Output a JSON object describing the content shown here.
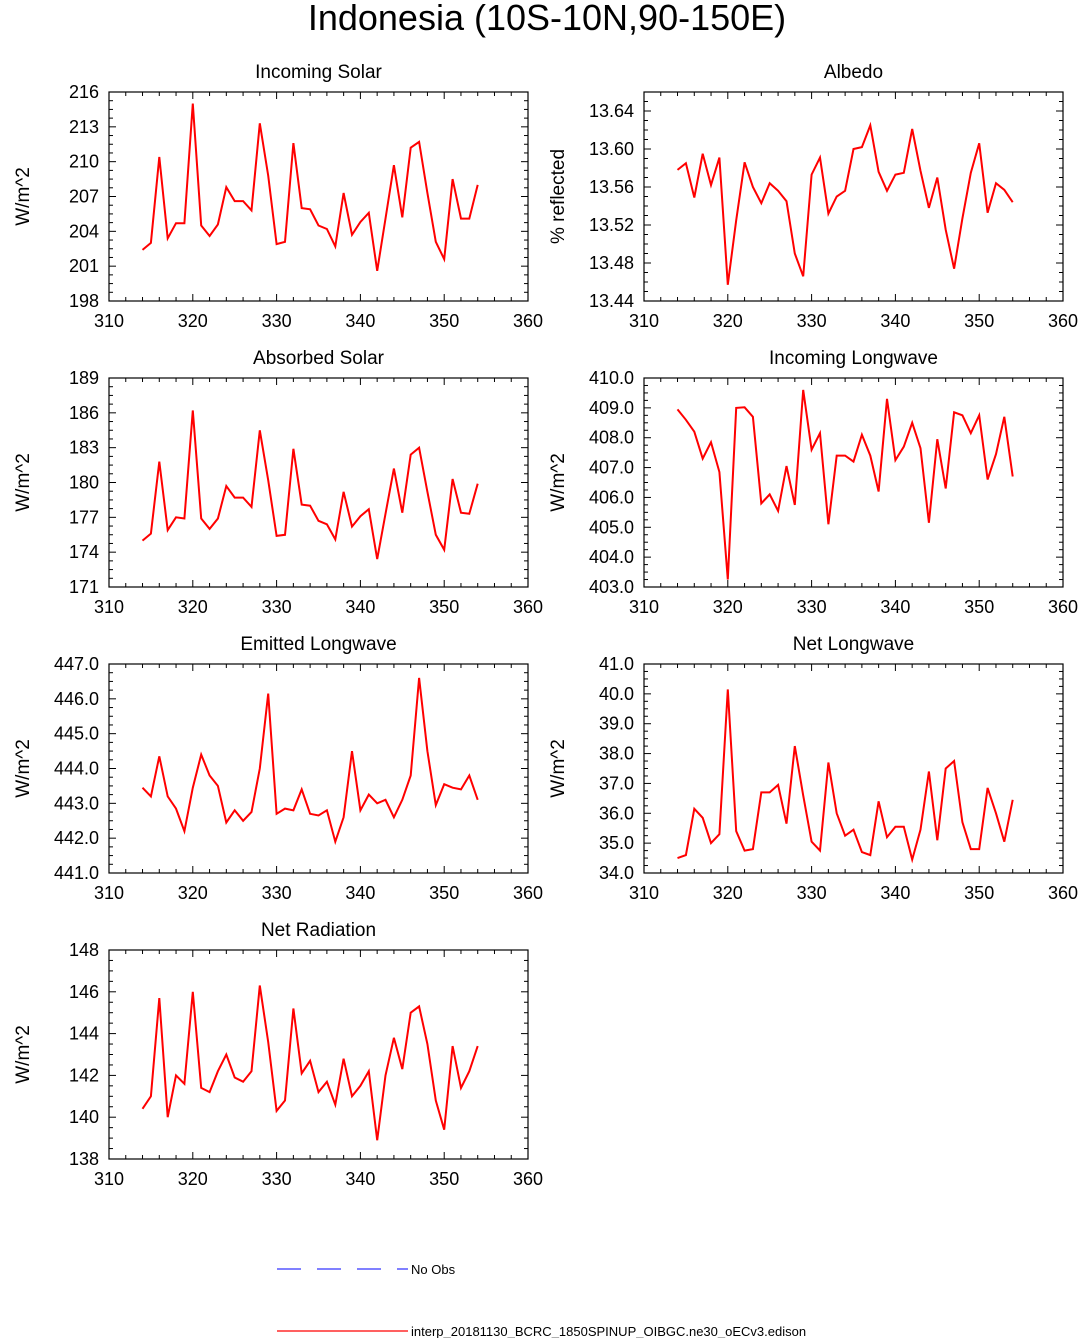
{
  "title": "Indonesia (10S-10N,90-150E)",
  "colors": {
    "model": "#ff0000",
    "obs": "#0000ff",
    "axis": "#000000"
  },
  "legend": {
    "obs_label": "No Obs",
    "model_label": "interp_20181130_BCRC_1850SPINUP_OIBGC.ne30_oECv3.edison"
  },
  "chart_data": [
    {
      "id": "incoming-solar",
      "type": "line",
      "title": "Incoming Solar",
      "ylabel": "W/m^2",
      "xlim": [
        310,
        360
      ],
      "xticks": [
        310,
        320,
        330,
        340,
        350,
        360
      ],
      "ylim": [
        198,
        216
      ],
      "yticks": [
        "198",
        "201",
        "204",
        "207",
        "210",
        "213",
        "216"
      ],
      "series": [
        {
          "name": "interp_20181130_BCRC_1850SPINUP_OIBGC.ne30_oECv3.edison",
          "x": [
            314,
            315,
            316,
            317,
            318,
            319,
            320,
            321,
            322,
            323,
            324,
            325,
            326,
            327,
            328,
            329,
            330,
            331,
            332,
            333,
            334,
            335,
            336,
            337,
            338,
            339,
            340,
            341,
            342,
            343,
            344,
            345,
            346,
            347,
            348,
            349,
            350,
            351,
            352,
            353,
            354
          ],
          "y": [
            202.4,
            203.0,
            210.4,
            203.4,
            204.7,
            204.7,
            215.0,
            204.5,
            203.6,
            204.6,
            207.8,
            206.6,
            206.6,
            205.8,
            213.3,
            208.8,
            202.9,
            203.1,
            211.6,
            206.0,
            205.9,
            204.5,
            204.2,
            202.7,
            207.3,
            203.7,
            204.8,
            205.6,
            200.6,
            205.1,
            209.7,
            205.2,
            211.2,
            211.7,
            207.3,
            203.1,
            201.6,
            208.5,
            205.1,
            205.1,
            208.0
          ]
        }
      ]
    },
    {
      "id": "albedo",
      "type": "line",
      "title": "Albedo",
      "ylabel": "% reflected",
      "xlim": [
        310,
        360
      ],
      "xticks": [
        310,
        320,
        330,
        340,
        350,
        360
      ],
      "ylim": [
        13.44,
        13.66
      ],
      "yticks": [
        "13.44",
        "13.48",
        "13.52",
        "13.56",
        "13.60",
        "13.64"
      ],
      "series": [
        {
          "name": "interp_20181130_BCRC_1850SPINUP_OIBGC.ne30_oECv3.edison",
          "x": [
            314,
            315,
            316,
            317,
            318,
            319,
            320,
            321,
            322,
            323,
            324,
            325,
            326,
            327,
            328,
            329,
            330,
            331,
            332,
            333,
            334,
            335,
            336,
            337,
            338,
            339,
            340,
            341,
            342,
            343,
            344,
            345,
            346,
            347,
            348,
            349,
            350,
            351,
            352,
            353,
            354
          ],
          "y": [
            13.578,
            13.585,
            13.549,
            13.595,
            13.562,
            13.591,
            13.457,
            13.525,
            13.586,
            13.56,
            13.543,
            13.564,
            13.556,
            13.545,
            13.49,
            13.466,
            13.573,
            13.591,
            13.532,
            13.55,
            13.556,
            13.6,
            13.602,
            13.625,
            13.576,
            13.556,
            13.573,
            13.575,
            13.621,
            13.577,
            13.538,
            13.57,
            13.515,
            13.474,
            13.527,
            13.575,
            13.606,
            13.533,
            13.564,
            13.557,
            13.544
          ]
        }
      ]
    },
    {
      "id": "absorbed-solar",
      "type": "line",
      "title": "Absorbed Solar",
      "ylabel": "W/m^2",
      "xlim": [
        310,
        360
      ],
      "xticks": [
        310,
        320,
        330,
        340,
        350,
        360
      ],
      "ylim": [
        171,
        189
      ],
      "yticks": [
        "171",
        "174",
        "177",
        "180",
        "183",
        "186",
        "189"
      ],
      "series": [
        {
          "name": "interp_20181130_BCRC_1850SPINUP_OIBGC.ne30_oECv3.edison",
          "x": [
            314,
            315,
            316,
            317,
            318,
            319,
            320,
            321,
            322,
            323,
            324,
            325,
            326,
            327,
            328,
            329,
            330,
            331,
            332,
            333,
            334,
            335,
            336,
            337,
            338,
            339,
            340,
            341,
            342,
            343,
            344,
            345,
            346,
            347,
            348,
            349,
            350,
            351,
            352,
            353,
            354
          ],
          "y": [
            175.0,
            175.6,
            181.8,
            175.9,
            177.0,
            176.9,
            186.2,
            176.9,
            176.0,
            176.9,
            179.7,
            178.7,
            178.7,
            177.9,
            184.5,
            180.2,
            175.4,
            175.5,
            182.9,
            178.1,
            178.0,
            176.7,
            176.4,
            175.1,
            179.2,
            176.2,
            177.1,
            177.7,
            173.4,
            177.3,
            181.2,
            177.4,
            182.4,
            183.0,
            179.2,
            175.5,
            174.2,
            180.3,
            177.4,
            177.3,
            179.9
          ]
        }
      ]
    },
    {
      "id": "incoming-longwave",
      "type": "line",
      "title": "Incoming Longwave",
      "ylabel": "W/m^2",
      "xlim": [
        310,
        360
      ],
      "xticks": [
        310,
        320,
        330,
        340,
        350,
        360
      ],
      "ylim": [
        403,
        410
      ],
      "yticks": [
        "403.0",
        "404.0",
        "405.0",
        "406.0",
        "407.0",
        "408.0",
        "409.0",
        "410.0"
      ],
      "series": [
        {
          "name": "interp_20181130_BCRC_1850SPINUP_OIBGC.ne30_oECv3.edison",
          "x": [
            314,
            315,
            316,
            317,
            318,
            319,
            320,
            321,
            322,
            323,
            324,
            325,
            326,
            327,
            328,
            329,
            330,
            331,
            332,
            333,
            334,
            335,
            336,
            337,
            338,
            339,
            340,
            341,
            342,
            343,
            344,
            345,
            346,
            347,
            348,
            349,
            350,
            351,
            352,
            353,
            354
          ],
          "y": [
            408.95,
            408.6,
            408.2,
            407.3,
            407.85,
            406.85,
            403.25,
            409.0,
            409.02,
            408.7,
            405.8,
            406.1,
            405.55,
            407.05,
            405.75,
            409.6,
            407.6,
            408.15,
            405.1,
            407.4,
            407.4,
            407.2,
            408.1,
            407.4,
            406.2,
            409.3,
            407.25,
            407.7,
            408.5,
            407.65,
            405.15,
            407.95,
            406.3,
            408.85,
            408.75,
            408.15,
            408.75,
            406.6,
            407.45,
            408.7,
            406.7
          ]
        }
      ]
    },
    {
      "id": "emitted-longwave",
      "type": "line",
      "title": "Emitted Longwave",
      "ylabel": "W/m^2",
      "xlim": [
        310,
        360
      ],
      "xticks": [
        310,
        320,
        330,
        340,
        350,
        360
      ],
      "ylim": [
        441,
        447
      ],
      "yticks": [
        "441.0",
        "442.0",
        "443.0",
        "444.0",
        "445.0",
        "446.0",
        "447.0"
      ],
      "series": [
        {
          "name": "interp_20181130_BCRC_1850SPINUP_OIBGC.ne30_oECv3.edison",
          "x": [
            314,
            315,
            316,
            317,
            318,
            319,
            320,
            321,
            322,
            323,
            324,
            325,
            326,
            327,
            328,
            329,
            330,
            331,
            332,
            333,
            334,
            335,
            336,
            337,
            338,
            339,
            340,
            341,
            342,
            343,
            344,
            345,
            346,
            347,
            348,
            349,
            350,
            351,
            352,
            353,
            354
          ],
          "y": [
            443.45,
            443.2,
            444.35,
            443.2,
            442.85,
            442.2,
            443.45,
            444.4,
            443.8,
            443.5,
            442.45,
            442.8,
            442.5,
            442.75,
            444.0,
            446.15,
            442.7,
            442.85,
            442.8,
            443.4,
            442.7,
            442.65,
            442.8,
            441.9,
            442.6,
            444.5,
            442.8,
            443.25,
            443.0,
            443.1,
            442.6,
            443.1,
            443.8,
            446.6,
            444.5,
            442.95,
            443.55,
            443.45,
            443.4,
            443.8,
            443.1
          ]
        }
      ]
    },
    {
      "id": "net-longwave",
      "type": "line",
      "title": "Net Longwave",
      "ylabel": "W/m^2",
      "xlim": [
        310,
        360
      ],
      "xticks": [
        310,
        320,
        330,
        340,
        350,
        360
      ],
      "ylim": [
        34,
        41
      ],
      "yticks": [
        "34.0",
        "35.0",
        "36.0",
        "37.0",
        "38.0",
        "39.0",
        "40.0",
        "41.0"
      ],
      "series": [
        {
          "name": "interp_20181130_BCRC_1850SPINUP_OIBGC.ne30_oECv3.edison",
          "x": [
            314,
            315,
            316,
            317,
            318,
            319,
            320,
            321,
            322,
            323,
            324,
            325,
            326,
            327,
            328,
            329,
            330,
            331,
            332,
            333,
            334,
            335,
            336,
            337,
            338,
            339,
            340,
            341,
            342,
            343,
            344,
            345,
            346,
            347,
            348,
            349,
            350,
            351,
            352,
            353,
            354
          ],
          "y": [
            34.5,
            34.6,
            36.15,
            35.85,
            35.0,
            35.3,
            40.15,
            35.4,
            34.75,
            34.8,
            36.7,
            36.7,
            36.95,
            35.65,
            38.25,
            36.6,
            35.05,
            34.75,
            37.7,
            36.0,
            35.25,
            35.45,
            34.7,
            34.6,
            36.4,
            35.2,
            35.55,
            35.55,
            34.45,
            35.45,
            37.4,
            35.1,
            37.5,
            37.75,
            35.7,
            34.8,
            34.8,
            36.85,
            36.0,
            35.05,
            36.45
          ]
        }
      ]
    },
    {
      "id": "net-radiation",
      "type": "line",
      "title": "Net Radiation",
      "ylabel": "W/m^2",
      "xlim": [
        310,
        360
      ],
      "xticks": [
        310,
        320,
        330,
        340,
        350,
        360
      ],
      "ylim": [
        138,
        148
      ],
      "yticks": [
        "138",
        "140",
        "142",
        "144",
        "146",
        "148"
      ],
      "series": [
        {
          "name": "interp_20181130_BCRC_1850SPINUP_OIBGC.ne30_oECv3.edison",
          "x": [
            314,
            315,
            316,
            317,
            318,
            319,
            320,
            321,
            322,
            323,
            324,
            325,
            326,
            327,
            328,
            329,
            330,
            331,
            332,
            333,
            334,
            335,
            336,
            337,
            338,
            339,
            340,
            341,
            342,
            343,
            344,
            345,
            346,
            347,
            348,
            349,
            350,
            351,
            352,
            353,
            354
          ],
          "y": [
            140.4,
            141.0,
            145.7,
            140.0,
            142.0,
            141.6,
            146.0,
            141.4,
            141.2,
            142.2,
            143.0,
            141.9,
            141.7,
            142.2,
            146.3,
            143.6,
            140.3,
            140.8,
            145.2,
            142.1,
            142.7,
            141.2,
            141.7,
            140.6,
            142.8,
            141.0,
            141.5,
            142.2,
            138.9,
            142.0,
            143.8,
            142.3,
            145.0,
            145.3,
            143.5,
            140.8,
            139.4,
            143.4,
            141.4,
            142.2,
            143.4
          ]
        }
      ]
    }
  ]
}
